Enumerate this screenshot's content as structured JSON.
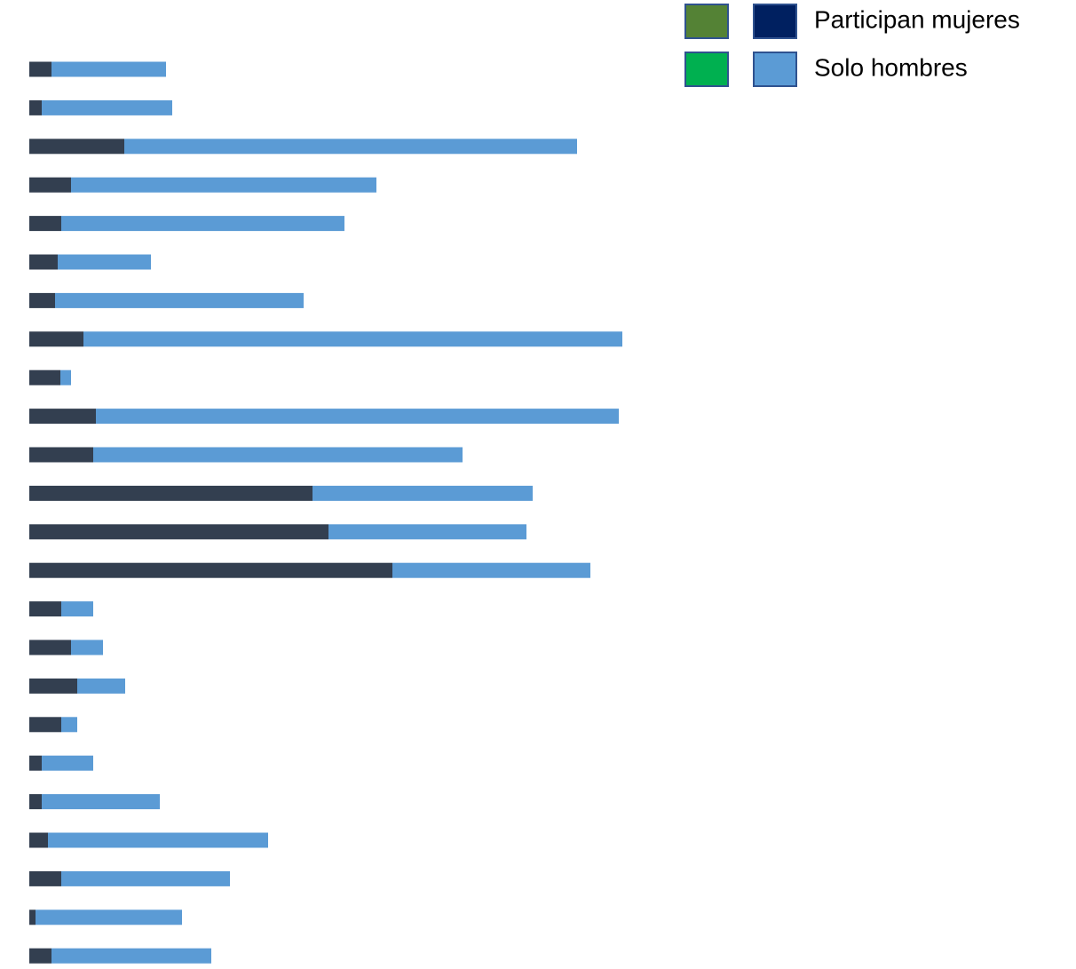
{
  "chart_data": {
    "type": "bar",
    "orientation": "horizontal",
    "stacked": true,
    "categories": [
      null,
      null,
      null,
      null,
      null,
      null,
      null,
      null,
      null,
      null,
      null,
      null,
      null,
      null,
      null,
      null,
      null,
      null,
      null,
      null,
      null,
      null,
      null,
      null
    ],
    "series": [
      {
        "name": "Participan mujeres",
        "color": "#333f50",
        "legend_colors": [
          "#548235",
          "#002060"
        ],
        "values": [
          25,
          14,
          107,
          47,
          36,
          32,
          29,
          61,
          35,
          75,
          72,
          319,
          337,
          409,
          36,
          47,
          54,
          36,
          14,
          14,
          21,
          36,
          7,
          25
        ]
      },
      {
        "name": "Solo hombres",
        "color": "#5b9bd5",
        "legend_colors": [
          "#00b050",
          "#5b9bd5"
        ],
        "values": [
          129,
          147,
          510,
          344,
          319,
          105,
          280,
          607,
          12,
          589,
          416,
          248,
          223,
          223,
          36,
          36,
          54,
          18,
          58,
          133,
          248,
          190,
          165,
          180
        ]
      }
    ],
    "xlim": [
      0,
      700
    ],
    "legend": "upper right"
  }
}
